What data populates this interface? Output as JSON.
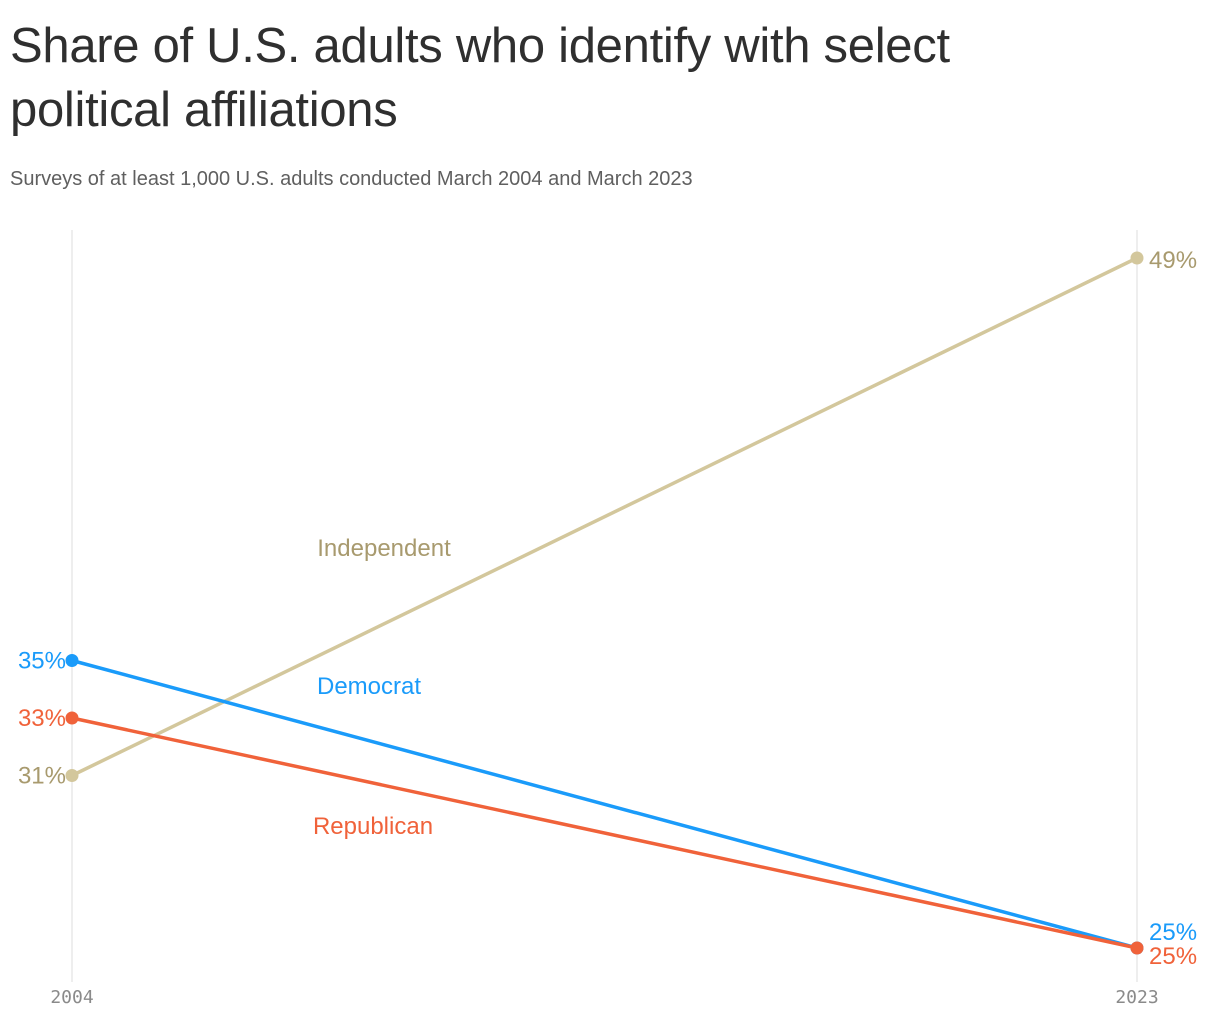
{
  "chart_data": {
    "type": "line",
    "title": "Share of U.S. adults who identify with select political affiliations",
    "subtitle": "Surveys of at least 1,000 U.S. adults conducted March 2004 and March 2023",
    "x": [
      "2004",
      "2023"
    ],
    "ylim": [
      25,
      49
    ],
    "series": [
      {
        "name": "Independent",
        "values": [
          31,
          49
        ],
        "labels": [
          "31%",
          "49%"
        ],
        "color": "#d3c79c",
        "text_color": "#a89a6e"
      },
      {
        "name": "Democrat",
        "values": [
          35,
          25
        ],
        "labels": [
          "35%",
          "25%"
        ],
        "color": "#1a9bfa",
        "text_color": "#1a9bfa"
      },
      {
        "name": "Republican",
        "values": [
          33,
          25
        ],
        "labels": [
          "33%",
          "25%"
        ],
        "color": "#f0623a",
        "text_color": "#f0623a"
      }
    ]
  }
}
